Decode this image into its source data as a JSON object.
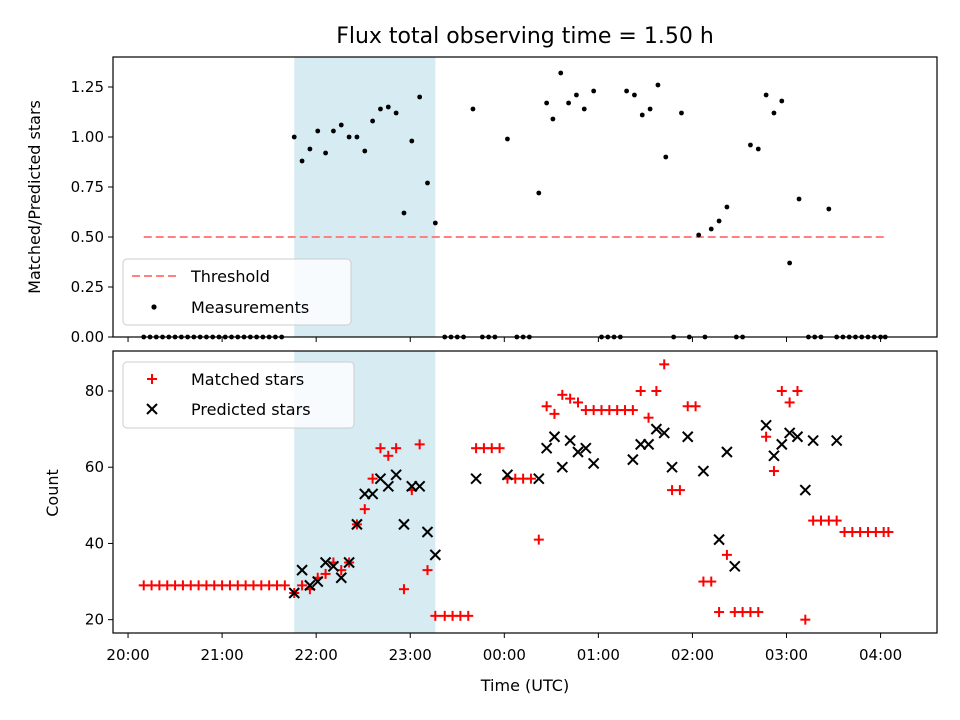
{
  "chart_data": [
    {
      "type": "scatter",
      "title": "Flux total observing time = 1.50 h",
      "xlabel": "",
      "ylabel": "Matched/Predicted stars",
      "xlim_hours": [
        19.84,
        28.6
      ],
      "ylim": [
        0,
        1.4
      ],
      "x_ticks": [
        "20:00",
        "21:00",
        "22:00",
        "23:00",
        "00:00",
        "01:00",
        "02:00",
        "03:00",
        "04:00"
      ],
      "y_ticks": [
        "0.00",
        "0.25",
        "0.50",
        "0.75",
        "1.00",
        "1.25"
      ],
      "shaded_region": [
        "21:46",
        "23:16"
      ],
      "legend": {
        "placement": "lower-left",
        "entries": [
          "Threshold",
          "Measurements"
        ]
      },
      "threshold": {
        "name": "Threshold",
        "value": 0.5,
        "x_range": [
          "20:10",
          "04:03"
        ],
        "color": "#ff8080",
        "style": "dashed"
      },
      "series": [
        {
          "name": "Measurements",
          "color": "#000000",
          "marker": "dot",
          "points": [
            [
              "20:10",
              0
            ],
            [
              "20:14",
              0
            ],
            [
              "20:18",
              0
            ],
            [
              "20:22",
              0
            ],
            [
              "20:26",
              0
            ],
            [
              "20:30",
              0
            ],
            [
              "20:34",
              0
            ],
            [
              "20:38",
              0
            ],
            [
              "20:42",
              0
            ],
            [
              "20:46",
              0
            ],
            [
              "20:50",
              0
            ],
            [
              "20:54",
              0
            ],
            [
              "20:58",
              0
            ],
            [
              "21:02",
              0
            ],
            [
              "21:06",
              0
            ],
            [
              "21:10",
              0
            ],
            [
              "21:14",
              0
            ],
            [
              "21:18",
              0
            ],
            [
              "21:22",
              0
            ],
            [
              "21:26",
              0
            ],
            [
              "21:30",
              0
            ],
            [
              "21:34",
              0
            ],
            [
              "21:38",
              0
            ],
            [
              "21:46",
              1.0
            ],
            [
              "21:51",
              0.88
            ],
            [
              "21:56",
              0.94
            ],
            [
              "22:01",
              1.03
            ],
            [
              "22:06",
              0.92
            ],
            [
              "22:11",
              1.03
            ],
            [
              "22:16",
              1.06
            ],
            [
              "22:21",
              1.0
            ],
            [
              "22:26",
              1.0
            ],
            [
              "22:31",
              0.93
            ],
            [
              "22:36",
              1.08
            ],
            [
              "22:41",
              1.14
            ],
            [
              "22:46",
              1.15
            ],
            [
              "22:51",
              1.12
            ],
            [
              "22:56",
              0.62
            ],
            [
              "23:01",
              0.98
            ],
            [
              "23:06",
              1.2
            ],
            [
              "23:11",
              0.77
            ],
            [
              "23:16",
              0.57
            ],
            [
              "23:22",
              0
            ],
            [
              "23:26",
              0
            ],
            [
              "23:30",
              0
            ],
            [
              "23:34",
              0
            ],
            [
              "23:40",
              1.14
            ],
            [
              "23:46",
              0
            ],
            [
              "23:50",
              0
            ],
            [
              "23:54",
              0
            ],
            [
              "24:02",
              0.99
            ],
            [
              "24:08",
              0
            ],
            [
              "24:12",
              0
            ],
            [
              "24:16",
              0
            ],
            [
              "24:22",
              0.72
            ],
            [
              "24:27",
              1.17
            ],
            [
              "24:31",
              1.09
            ],
            [
              "24:36",
              1.32
            ],
            [
              "24:41",
              1.17
            ],
            [
              "24:46",
              1.21
            ],
            [
              "24:51",
              1.14
            ],
            [
              "24:57",
              1.23
            ],
            [
              "25:02",
              0
            ],
            [
              "25:06",
              0
            ],
            [
              "25:10",
              0
            ],
            [
              "25:14",
              0
            ],
            [
              "25:18",
              1.23
            ],
            [
              "25:23",
              1.21
            ],
            [
              "25:28",
              1.11
            ],
            [
              "25:33",
              1.14
            ],
            [
              "25:38",
              1.26
            ],
            [
              "25:43",
              0.9
            ],
            [
              "25:48",
              0
            ],
            [
              "25:53",
              1.12
            ],
            [
              "25:58",
              0
            ],
            [
              "26:04",
              0.51
            ],
            [
              "26:08",
              0
            ],
            [
              "26:12",
              0.54
            ],
            [
              "26:17",
              0.58
            ],
            [
              "26:22",
              0.65
            ],
            [
              "26:28",
              0
            ],
            [
              "26:32",
              0
            ],
            [
              "26:37",
              0.96
            ],
            [
              "26:42",
              0.94
            ],
            [
              "26:47",
              1.21
            ],
            [
              "26:52",
              1.12
            ],
            [
              "26:57",
              1.18
            ],
            [
              "27:02",
              0.37
            ],
            [
              "27:08",
              0.69
            ],
            [
              "27:14",
              0
            ],
            [
              "27:18",
              0
            ],
            [
              "27:22",
              0
            ],
            [
              "27:27",
              0.64
            ],
            [
              "27:32",
              0
            ],
            [
              "27:36",
              0
            ],
            [
              "27:40",
              0
            ],
            [
              "27:44",
              0
            ],
            [
              "27:48",
              0
            ],
            [
              "27:52",
              0
            ],
            [
              "27:56",
              0
            ],
            [
              "28:00",
              0
            ],
            [
              "28:03",
              0
            ]
          ]
        }
      ]
    },
    {
      "type": "scatter",
      "title": "",
      "xlabel": "Time (UTC)",
      "ylabel": "Count",
      "xlim_hours": [
        19.84,
        28.6
      ],
      "ylim": [
        16.5,
        90.5
      ],
      "x_ticks": [
        "20:00",
        "21:00",
        "22:00",
        "23:00",
        "00:00",
        "01:00",
        "02:00",
        "03:00",
        "04:00"
      ],
      "y_ticks": [
        "20",
        "40",
        "60",
        "80"
      ],
      "shaded_region": [
        "21:46",
        "23:16"
      ],
      "legend": {
        "placement": "upper-left",
        "entries": [
          "Matched stars",
          "Predicted stars"
        ]
      },
      "series": [
        {
          "name": "Matched stars",
          "color": "#ff0000",
          "marker": "plus",
          "points": [
            [
              "20:10",
              29
            ],
            [
              "20:15",
              29
            ],
            [
              "20:20",
              29
            ],
            [
              "20:25",
              29
            ],
            [
              "20:30",
              29
            ],
            [
              "20:35",
              29
            ],
            [
              "20:40",
              29
            ],
            [
              "20:45",
              29
            ],
            [
              "20:50",
              29
            ],
            [
              "20:55",
              29
            ],
            [
              "21:00",
              29
            ],
            [
              "21:05",
              29
            ],
            [
              "21:10",
              29
            ],
            [
              "21:15",
              29
            ],
            [
              "21:20",
              29
            ],
            [
              "21:25",
              29
            ],
            [
              "21:30",
              29
            ],
            [
              "21:35",
              29
            ],
            [
              "21:40",
              29
            ],
            [
              "21:46",
              27
            ],
            [
              "21:51",
              29
            ],
            [
              "21:56",
              28
            ],
            [
              "22:01",
              31
            ],
            [
              "22:06",
              32
            ],
            [
              "22:11",
              35
            ],
            [
              "22:16",
              33
            ],
            [
              "22:21",
              35
            ],
            [
              "22:26",
              45
            ],
            [
              "22:31",
              49
            ],
            [
              "22:36",
              57
            ],
            [
              "22:41",
              65
            ],
            [
              "22:46",
              63
            ],
            [
              "22:51",
              65
            ],
            [
              "22:56",
              28
            ],
            [
              "23:01",
              54
            ],
            [
              "23:06",
              66
            ],
            [
              "23:11",
              33
            ],
            [
              "23:16",
              21
            ],
            [
              "23:22",
              21
            ],
            [
              "23:27",
              21
            ],
            [
              "23:32",
              21
            ],
            [
              "23:37",
              21
            ],
            [
              "23:42",
              65
            ],
            [
              "23:47",
              65
            ],
            [
              "23:52",
              65
            ],
            [
              "23:57",
              65
            ],
            [
              "24:02",
              57
            ],
            [
              "24:07",
              57
            ],
            [
              "24:12",
              57
            ],
            [
              "24:17",
              57
            ],
            [
              "24:22",
              41
            ],
            [
              "24:27",
              76
            ],
            [
              "24:32",
              74
            ],
            [
              "24:37",
              79
            ],
            [
              "24:42",
              78
            ],
            [
              "24:47",
              77
            ],
            [
              "24:52",
              75
            ],
            [
              "24:57",
              75
            ],
            [
              "25:02",
              75
            ],
            [
              "25:07",
              75
            ],
            [
              "25:12",
              75
            ],
            [
              "25:17",
              75
            ],
            [
              "25:22",
              75
            ],
            [
              "25:27",
              80
            ],
            [
              "25:32",
              73
            ],
            [
              "25:37",
              80
            ],
            [
              "25:42",
              87
            ],
            [
              "25:47",
              54
            ],
            [
              "25:52",
              54
            ],
            [
              "25:57",
              76
            ],
            [
              "26:02",
              76
            ],
            [
              "26:07",
              30
            ],
            [
              "26:12",
              30
            ],
            [
              "26:17",
              22
            ],
            [
              "26:22",
              37
            ],
            [
              "26:27",
              22
            ],
            [
              "26:32",
              22
            ],
            [
              "26:37",
              22
            ],
            [
              "26:42",
              22
            ],
            [
              "26:47",
              68
            ],
            [
              "26:52",
              59
            ],
            [
              "26:57",
              80
            ],
            [
              "27:02",
              77
            ],
            [
              "27:07",
              80
            ],
            [
              "27:12",
              20
            ],
            [
              "27:17",
              46
            ],
            [
              "27:22",
              46
            ],
            [
              "27:27",
              46
            ],
            [
              "27:32",
              46
            ],
            [
              "27:37",
              43
            ],
            [
              "27:42",
              43
            ],
            [
              "27:47",
              43
            ],
            [
              "27:52",
              43
            ],
            [
              "27:57",
              43
            ],
            [
              "28:02",
              43
            ],
            [
              "28:05",
              43
            ]
          ]
        },
        {
          "name": "Predicted stars",
          "color": "#000000",
          "marker": "x",
          "points": [
            [
              "21:46",
              27
            ],
            [
              "21:51",
              33
            ],
            [
              "21:56",
              29
            ],
            [
              "22:01",
              30
            ],
            [
              "22:06",
              35
            ],
            [
              "22:11",
              34
            ],
            [
              "22:16",
              31
            ],
            [
              "22:21",
              35
            ],
            [
              "22:26",
              45
            ],
            [
              "22:31",
              53
            ],
            [
              "22:36",
              53
            ],
            [
              "22:41",
              57
            ],
            [
              "22:46",
              55
            ],
            [
              "22:51",
              58
            ],
            [
              "22:56",
              45
            ],
            [
              "23:01",
              55
            ],
            [
              "23:06",
              55
            ],
            [
              "23:11",
              43
            ],
            [
              "23:16",
              37
            ],
            [
              "23:42",
              57
            ],
            [
              "24:02",
              58
            ],
            [
              "24:22",
              57
            ],
            [
              "24:27",
              65
            ],
            [
              "24:32",
              68
            ],
            [
              "24:37",
              60
            ],
            [
              "24:42",
              67
            ],
            [
              "24:47",
              64
            ],
            [
              "24:52",
              65
            ],
            [
              "24:57",
              61
            ],
            [
              "25:22",
              62
            ],
            [
              "25:27",
              66
            ],
            [
              "25:32",
              66
            ],
            [
              "25:37",
              70
            ],
            [
              "25:42",
              69
            ],
            [
              "25:47",
              60
            ],
            [
              "25:57",
              68
            ],
            [
              "26:07",
              59
            ],
            [
              "26:17",
              41
            ],
            [
              "26:22",
              64
            ],
            [
              "26:27",
              34
            ],
            [
              "26:47",
              71
            ],
            [
              "26:52",
              63
            ],
            [
              "26:57",
              66
            ],
            [
              "27:02",
              69
            ],
            [
              "27:07",
              68
            ],
            [
              "27:12",
              54
            ],
            [
              "27:17",
              67
            ],
            [
              "27:32",
              67
            ]
          ]
        }
      ]
    }
  ],
  "colors": {
    "shade": "#add8e6",
    "threshold": "#ff8080",
    "matched": "#ff0000",
    "predicted": "#000000",
    "measurements": "#000000"
  }
}
